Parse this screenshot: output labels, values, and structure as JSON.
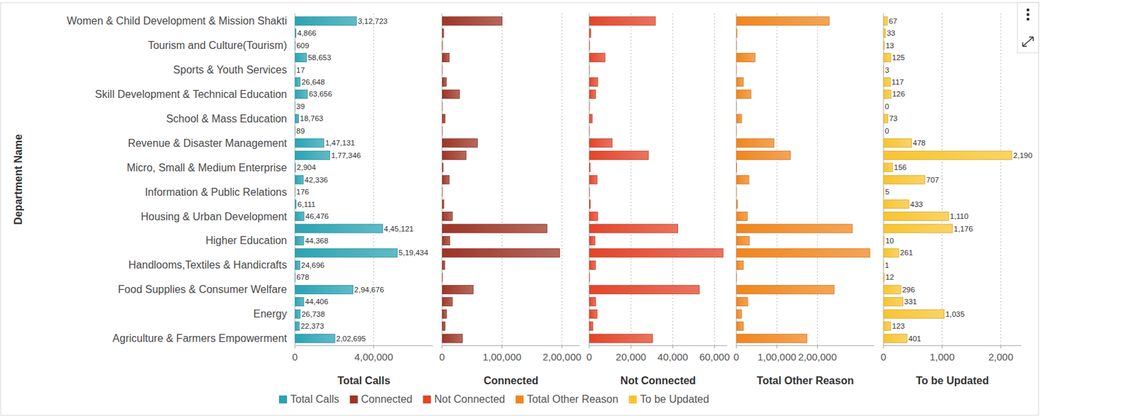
{
  "chart_data": [
    {
      "type": "bar",
      "orientation": "horizontal",
      "ylabel": "Department Name",
      "xlabel": "Total Calls",
      "categories": [
        "Women & Child Development & Mission Shakti",
        null,
        "Tourism and Culture(Tourism)",
        null,
        "Sports & Youth Services",
        null,
        "Skill Development & Technical Education",
        null,
        "School & Mass Education",
        null,
        "Revenue & Disaster Management",
        null,
        "Micro, Small & Medium Enterprise",
        null,
        "Information & Public Relations",
        null,
        "Housing & Urban Development",
        null,
        "Higher Education",
        null,
        "Handlooms,Textiles & Handicrafts",
        null,
        "Food Supplies & Consumer Welfare",
        null,
        "Energy",
        null,
        "Agriculture & Farmers  Empowerment"
      ],
      "series": [
        {
          "name": "Total Calls",
          "color": "#2ba3b3",
          "values": [
            312723,
            4866,
            609,
            58653,
            17,
            26648,
            63656,
            39,
            18763,
            89,
            147131,
            177346,
            2904,
            42336,
            176,
            6111,
            46476,
            445121,
            44368,
            519434,
            24696,
            678,
            294676,
            44406,
            26738,
            22373,
            202695
          ],
          "value_labels": [
            "3,12,723",
            "4,866",
            "609",
            "58,653",
            "17",
            "26,648",
            "63,656",
            "39",
            "18,763",
            "89",
            "1,47,131",
            "1,77,346",
            "2,904",
            "42,336",
            "176",
            "6,111",
            "46,476",
            "4,45,121",
            "44,368",
            "5,19,434",
            "24,696",
            "678",
            "2,94,676",
            "44,406",
            "26,738",
            "22,373",
            "2,02,695"
          ]
        }
      ],
      "xlim": [
        0,
        700000
      ],
      "xticks": [
        0,
        {
          "value": 400000,
          "label": "4,00,000"
        }
      ],
      "grid": true,
      "data_labels": true,
      "legend": "bottom"
    },
    {
      "type": "bar",
      "orientation": "horizontal",
      "xlabel": "Connected",
      "series": [
        {
          "name": "Connected",
          "color": "#9c3526",
          "values": [
            100000,
            2500,
            300,
            12000,
            10,
            7000,
            29000,
            20,
            5000,
            40,
            59000,
            40000,
            1500,
            12000,
            100,
            3000,
            17000,
            175000,
            13000,
            196000,
            4500,
            300,
            52000,
            17000,
            7500,
            5000,
            34000
          ]
        }
      ],
      "xlim": [
        0,
        230000
      ],
      "xticks": [
        0,
        {
          "value": 100000,
          "label": "1,00,000"
        },
        {
          "value": 200000,
          "label": "2,00,000"
        }
      ],
      "grid": true,
      "data_labels": false
    },
    {
      "type": "bar",
      "orientation": "horizontal",
      "xlabel": "Not Connected",
      "series": [
        {
          "name": "Not Connected",
          "color": "#e2452a",
          "values": [
            31700,
            700,
            100,
            7600,
            5,
            4100,
            3100,
            10,
            1400,
            20,
            11000,
            28300,
            400,
            3800,
            50,
            500,
            4100,
            42400,
            2800,
            64100,
            3000,
            100,
            52700,
            3100,
            3800,
            1700,
            30300
          ]
        }
      ],
      "xlim": [
        0,
        66000
      ],
      "xticks": [
        0,
        {
          "value": 20000,
          "label": "20,000"
        },
        {
          "value": 40000,
          "label": "40,000"
        },
        {
          "value": 60000,
          "label": "60,000"
        }
      ],
      "grid": true,
      "data_labels": false
    },
    {
      "type": "bar",
      "orientation": "horizontal",
      "xlabel": "Total Other Reason",
      "series": [
        {
          "name": "Total Other Reason",
          "color": "#f0861e",
          "values": [
            229000,
            1500,
            200,
            46000,
            5,
            17000,
            36000,
            10,
            13000,
            30,
            93000,
            133000,
            1000,
            31000,
            50,
            2500,
            27000,
            286000,
            32000,
            329000,
            17000,
            300,
            241000,
            28000,
            13000,
            17000,
            174000
          ]
        }
      ],
      "xlim": [
        0,
        340000
      ],
      "xticks": [
        0,
        {
          "value": 100000,
          "label": "1,00,000"
        },
        {
          "value": 200000,
          "label": "2,00,000"
        }
      ],
      "grid": true,
      "data_labels": false
    },
    {
      "type": "bar",
      "orientation": "horizontal",
      "xlabel": "To be Updated",
      "series": [
        {
          "name": "To be Updated",
          "color": "#f7c431",
          "values": [
            67,
            33,
            13,
            125,
            3,
            117,
            126,
            0,
            73,
            0,
            478,
            2190,
            156,
            707,
            5,
            433,
            1110,
            1176,
            10,
            261,
            1,
            12,
            296,
            331,
            1035,
            123,
            401
          ],
          "value_labels": [
            "67",
            "33",
            "13",
            "125",
            "3",
            "117",
            "126",
            "0",
            "73",
            "0",
            "478",
            "2,190",
            "156",
            "707",
            "5",
            "433",
            "1,110",
            "1,176",
            "10",
            "261",
            "1",
            "12",
            "296",
            "331",
            "1,035",
            "123",
            "401"
          ]
        }
      ],
      "xlim": [
        0,
        2350
      ],
      "xticks": [
        0,
        {
          "value": 1000,
          "label": "1,000"
        },
        {
          "value": 2000,
          "label": "2,000"
        }
      ],
      "grid": true,
      "data_labels": true
    }
  ]
}
